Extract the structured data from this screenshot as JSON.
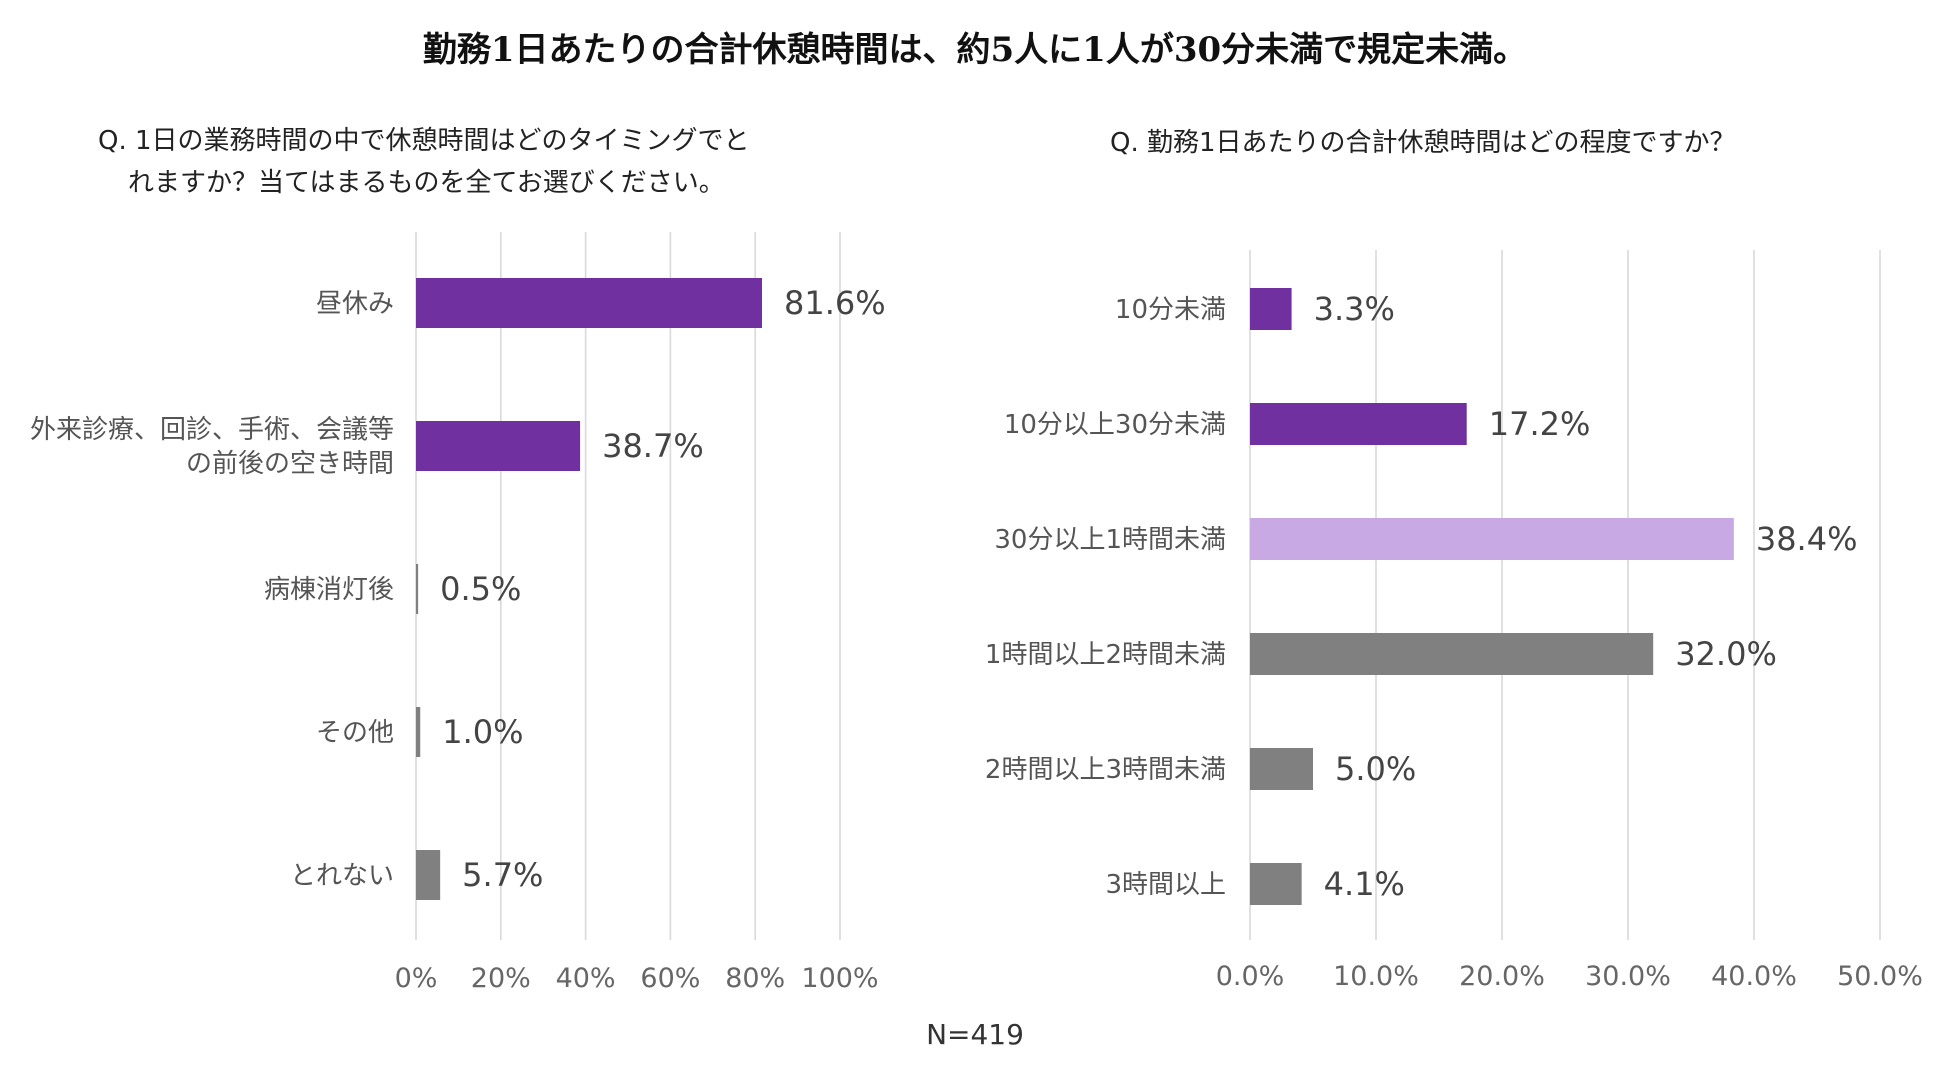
{
  "title": "勤務1日あたりの合計休憩時間は、約5人に1人が30分未満で規定未満。",
  "n_label": "N=419",
  "colors": {
    "purple": "#7030a0",
    "light_purple": "#c9a9e3",
    "gray": "#808080",
    "grid": "#d9d9d9"
  },
  "chart_data": [
    {
      "type": "bar",
      "orientation": "horizontal",
      "title_line1": "Q. 1日の業務時間の中で休憩時間はどのタイミングでと",
      "title_line2": "れますか？当てはまるものを全てお選びください。",
      "categories": [
        [
          "昼休み"
        ],
        [
          "外来診療、回診、手術、会議等",
          "の前後の空き時間"
        ],
        [
          "病棟消灯後"
        ],
        [
          "その他"
        ],
        [
          "とれない"
        ]
      ],
      "values": [
        81.6,
        38.7,
        0.5,
        1.0,
        5.7
      ],
      "value_labels": [
        "81.6%",
        "38.7%",
        "0.5%",
        "1.0%",
        "5.7%"
      ],
      "bar_colors": [
        "purple",
        "purple",
        "gray",
        "gray",
        "gray"
      ],
      "xlim": [
        0,
        100
      ],
      "ticks": [
        0,
        20,
        40,
        60,
        80,
        100
      ],
      "tick_labels": [
        "0%",
        "20%",
        "40%",
        "60%",
        "80%",
        "100%"
      ],
      "grid": true
    },
    {
      "type": "bar",
      "orientation": "horizontal",
      "title_line1": "Q. 勤務1日あたりの合計休憩時間はどの程度ですか？",
      "categories": [
        [
          "10分未満"
        ],
        [
          "10分以上30分未満"
        ],
        [
          "30分以上1時間未満"
        ],
        [
          "1時間以上2時間未満"
        ],
        [
          "2時間以上3時間未満"
        ],
        [
          "3時間以上"
        ]
      ],
      "values": [
        3.3,
        17.2,
        38.4,
        32.0,
        5.0,
        4.1
      ],
      "value_labels": [
        "3.3%",
        "17.2%",
        "38.4%",
        "32.0%",
        "5.0%",
        "4.1%"
      ],
      "bar_colors": [
        "purple",
        "purple",
        "light_purple",
        "gray",
        "gray",
        "gray"
      ],
      "xlim": [
        0,
        50
      ],
      "ticks": [
        0,
        10,
        20,
        30,
        40,
        50
      ],
      "tick_labels": [
        "0.0%",
        "10.0%",
        "20.0%",
        "30.0%",
        "40.0%",
        "50.0%"
      ],
      "grid": true
    }
  ]
}
